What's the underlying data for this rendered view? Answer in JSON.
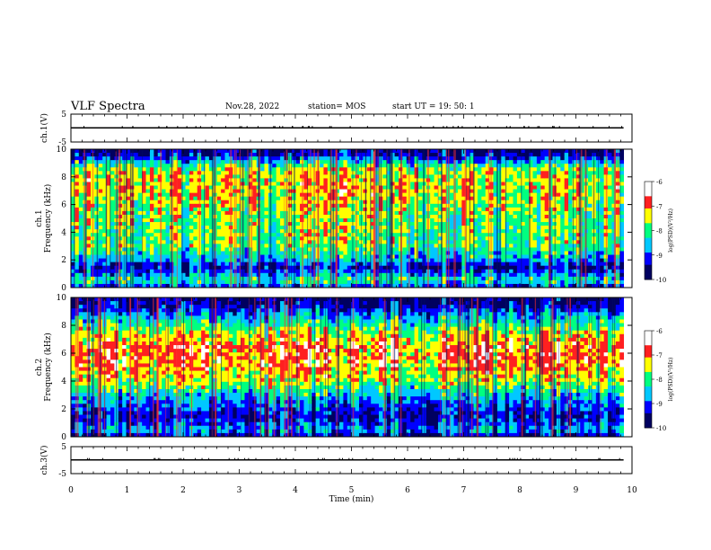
{
  "header": {
    "title": "VLF Spectra",
    "date": "Nov.28, 2022",
    "station": "station= MOS",
    "start": "start  UT =   19: 50: 1"
  },
  "colors": {
    "colormap": [
      "#000060",
      "#0000ff",
      "#00c8ff",
      "#00ff80",
      "#ffff00",
      "#ff2020",
      "#ffffff"
    ],
    "trace": "#000000"
  },
  "chart_data": [
    {
      "type": "line",
      "panel": "ch1-waveform",
      "ylabel": "ch.1(V)",
      "ylim": [
        -5,
        5
      ],
      "yticks": [
        "5",
        "-5"
      ],
      "xlim": [
        0,
        10
      ],
      "series": [
        {
          "x": [
            0,
            9.85
          ],
          "values": [
            0.1,
            0.1
          ]
        }
      ]
    },
    {
      "type": "heatmap",
      "panel": "ch1-spectrogram",
      "ylabel": "ch.1 Frequency (kHz)",
      "ylim": [
        0,
        10
      ],
      "yticks": [
        "0",
        "2",
        "4",
        "6",
        "8",
        "10"
      ],
      "xlim": [
        0,
        10
      ],
      "x_end_min": 9.85,
      "colorbar": {
        "label": "log(PSD)(V²/Hz)",
        "range": [
          -10,
          -6
        ],
        "ticks": [
          "-6",
          "-7",
          "-8",
          "-9",
          "-10"
        ]
      },
      "profile": [
        {
          "f": 0.0,
          "v": -9.3
        },
        {
          "f": 0.5,
          "v": -8.0
        },
        {
          "f": 1.0,
          "v": -8.8
        },
        {
          "f": 1.5,
          "v": -9.4
        },
        {
          "f": 2.0,
          "v": -8.6
        },
        {
          "f": 3.0,
          "v": -7.9
        },
        {
          "f": 5.0,
          "v": -7.8
        },
        {
          "f": 7.0,
          "v": -7.4
        },
        {
          "f": 8.5,
          "v": -7.6
        },
        {
          "f": 9.0,
          "v": -8.3
        },
        {
          "f": 9.5,
          "v": -9.3
        },
        {
          "f": 10.0,
          "v": -9.7
        }
      ]
    },
    {
      "type": "heatmap",
      "panel": "ch2-spectrogram",
      "ylabel": "ch.2 Frequency (kHz)",
      "ylim": [
        0,
        10
      ],
      "yticks": [
        "0",
        "2",
        "4",
        "6",
        "8",
        "10"
      ],
      "xlim": [
        0,
        10
      ],
      "x_end_min": 9.85,
      "colorbar": {
        "label": "log(PSD)(V²/Hz)",
        "range": [
          -10,
          -6
        ],
        "ticks": [
          "-6",
          "-7",
          "-8",
          "-9",
          "-10"
        ]
      },
      "profile": [
        {
          "f": 0.0,
          "v": -9.6
        },
        {
          "f": 0.5,
          "v": -8.6
        },
        {
          "f": 1.0,
          "v": -9.1
        },
        {
          "f": 1.5,
          "v": -9.4
        },
        {
          "f": 2.0,
          "v": -9.1
        },
        {
          "f": 3.0,
          "v": -8.5
        },
        {
          "f": 4.0,
          "v": -7.6
        },
        {
          "f": 5.5,
          "v": -7.0
        },
        {
          "f": 6.5,
          "v": -7.0
        },
        {
          "f": 7.5,
          "v": -7.6
        },
        {
          "f": 8.5,
          "v": -8.5
        },
        {
          "f": 9.5,
          "v": -9.5
        },
        {
          "f": 10.0,
          "v": -9.8
        }
      ]
    },
    {
      "type": "line",
      "panel": "ch3-waveform",
      "ylabel": "ch.3(V)",
      "ylim": [
        -5,
        5
      ],
      "yticks": [
        "5",
        "-5"
      ],
      "xlim": [
        0,
        10
      ],
      "xlabel": "Time  (min)",
      "xticks": [
        "0",
        "1",
        "2",
        "3",
        "4",
        "5",
        "6",
        "7",
        "8",
        "9",
        "10"
      ],
      "series": [
        {
          "x": [
            0,
            9.85
          ],
          "values": [
            0.1,
            0.1
          ]
        }
      ]
    }
  ]
}
